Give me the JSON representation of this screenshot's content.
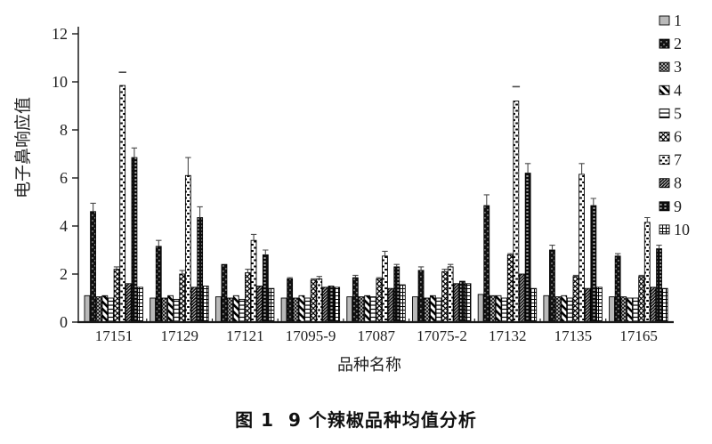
{
  "figure": {
    "caption": "图 1  9 个辣椒品种均值分析"
  },
  "chart_data": {
    "type": "bar",
    "title": "",
    "xlabel": "品种名称",
    "ylabel": "电子鼻响应值",
    "ylim": [
      0,
      12
    ],
    "yticks": [
      0,
      2,
      4,
      6,
      8,
      10,
      12
    ],
    "grid": false,
    "legend_position": "right",
    "error_bars": "upper",
    "categories": [
      "17151",
      "17129",
      "17121",
      "17095-9",
      "17087",
      "17075-2",
      "17132",
      "17135",
      "17165"
    ],
    "series": [
      {
        "name": "1",
        "pattern": "solid-light-gray",
        "values": [
          1.1,
          1.0,
          1.05,
          1.0,
          1.05,
          1.05,
          1.15,
          1.1,
          1.05
        ],
        "errors": [
          0,
          0,
          0,
          0,
          0,
          0,
          0,
          0,
          0
        ]
      },
      {
        "name": "2",
        "pattern": "black-speckled",
        "values": [
          4.6,
          3.15,
          2.4,
          1.8,
          1.85,
          2.15,
          4.85,
          3.0,
          2.75
        ],
        "errors": [
          0.35,
          0.25,
          0,
          0.05,
          0.1,
          0.15,
          0.45,
          0.2,
          0.1
        ]
      },
      {
        "name": "3",
        "pattern": "dark-fine-crosshatch",
        "values": [
          1.05,
          1.0,
          1.0,
          1.0,
          1.05,
          1.0,
          1.1,
          1.05,
          1.05
        ],
        "errors": [
          0,
          0,
          0,
          0,
          0,
          0,
          0,
          0,
          0
        ]
      },
      {
        "name": "4",
        "pattern": "bold-diagonal-stripes",
        "values": [
          1.1,
          1.1,
          1.1,
          1.1,
          1.1,
          1.1,
          1.1,
          1.1,
          1.0
        ],
        "errors": [
          0,
          0,
          0,
          0,
          0,
          0,
          0,
          0,
          0
        ]
      },
      {
        "name": "5",
        "pattern": "horizontal-lines",
        "values": [
          1.0,
          0.95,
          0.95,
          1.0,
          1.05,
          1.0,
          1.0,
          1.0,
          1.0
        ],
        "errors": [
          0,
          0,
          0,
          0,
          0,
          0,
          0,
          0,
          0
        ]
      },
      {
        "name": "6",
        "pattern": "diagonal-crosshatch",
        "values": [
          2.2,
          2.0,
          2.05,
          1.75,
          1.8,
          2.1,
          2.8,
          1.9,
          1.9
        ],
        "errors": [
          0.1,
          0.15,
          0.15,
          0.05,
          0.05,
          0.1,
          0.05,
          0.05,
          0.05
        ]
      },
      {
        "name": "7",
        "pattern": "staggered-dashes",
        "values": [
          9.85,
          6.1,
          3.4,
          1.8,
          2.75,
          2.3,
          9.2,
          6.15,
          4.15
        ],
        "errors": [
          0.55,
          0.75,
          0.25,
          0.1,
          0.2,
          0.1,
          0.6,
          0.45,
          0.2
        ]
      },
      {
        "name": "8",
        "pattern": "dark-diagonal-hatch",
        "values": [
          1.6,
          1.45,
          1.5,
          1.45,
          1.4,
          1.6,
          2.0,
          1.4,
          1.45
        ],
        "errors": [
          0,
          0,
          0,
          0,
          0,
          0,
          0,
          0,
          0
        ]
      },
      {
        "name": "9",
        "pattern": "black-white-dashes",
        "values": [
          6.85,
          4.35,
          2.8,
          1.5,
          2.3,
          1.7,
          6.2,
          4.85,
          3.05
        ],
        "errors": [
          0.4,
          0.45,
          0.2,
          0,
          0.1,
          0,
          0.4,
          0.3,
          0.15
        ]
      },
      {
        "name": "10",
        "pattern": "grid",
        "values": [
          1.45,
          1.5,
          1.4,
          1.45,
          1.55,
          1.6,
          1.4,
          1.45,
          1.4
        ],
        "errors": [
          0,
          0,
          0,
          0,
          0,
          0,
          0,
          0,
          0
        ]
      }
    ],
    "detached_error_caps": [
      {
        "series": "7",
        "category": "17151"
      },
      {
        "series": "7",
        "category": "17132"
      }
    ],
    "colors": {
      "axis": "#1a1a1a",
      "bar_outline": "#000000",
      "error_bar": "#4a4a4a",
      "text": "#1f1f1f",
      "light_gray_fill": "#b9b9b9"
    }
  }
}
